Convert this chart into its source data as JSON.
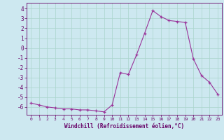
{
  "xlabel": "Windchill (Refroidissement éolien,°C)",
  "background_color": "#cde8f0",
  "grid_color": "#aad4cc",
  "line_color": "#993399",
  "marker": "+",
  "xlim": [
    -0.5,
    23.5
  ],
  "ylim": [
    -6.8,
    4.6
  ],
  "xticks": [
    0,
    1,
    2,
    3,
    4,
    5,
    6,
    7,
    8,
    9,
    10,
    11,
    12,
    13,
    14,
    15,
    16,
    17,
    18,
    19,
    20,
    21,
    22,
    23
  ],
  "yticks": [
    -6,
    -5,
    -4,
    -3,
    -2,
    -1,
    0,
    1,
    2,
    3,
    4
  ],
  "font_color": "#660066",
  "hours": [
    0,
    1,
    2,
    3,
    4,
    5,
    6,
    7,
    8,
    9,
    10,
    11,
    12,
    13,
    14,
    15,
    16,
    17,
    18,
    19,
    20,
    21,
    22,
    23
  ],
  "values": [
    -5.6,
    -5.8,
    -6.0,
    -6.1,
    -6.2,
    -6.2,
    -6.3,
    -6.3,
    -6.4,
    -6.5,
    -5.8,
    -2.5,
    -2.7,
    -0.7,
    1.5,
    3.8,
    3.2,
    2.8,
    2.7,
    2.6,
    -1.1,
    -2.8,
    -3.5,
    -4.7
  ]
}
